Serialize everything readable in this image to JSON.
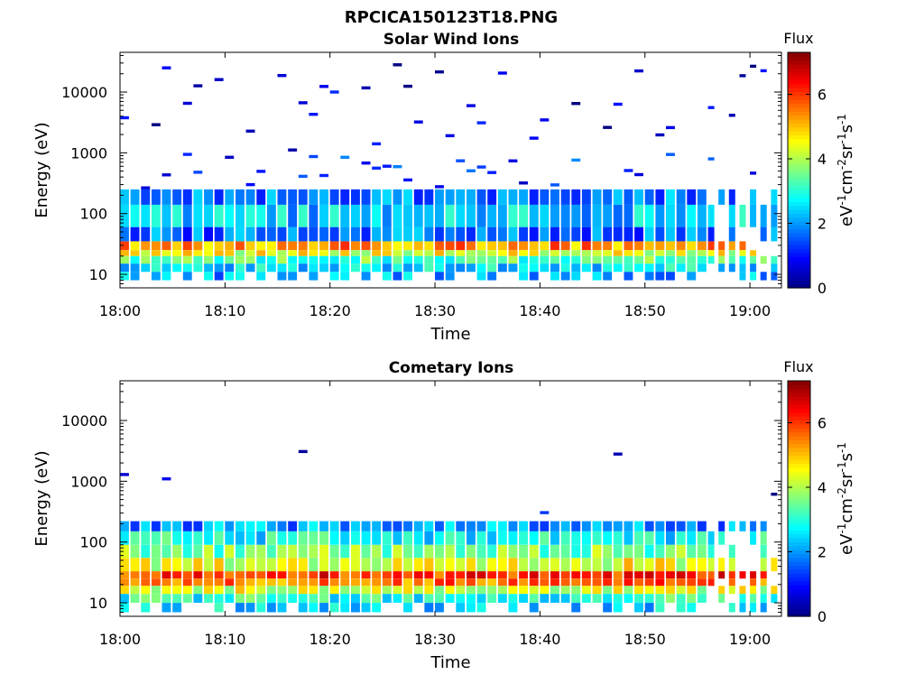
{
  "figure_title": "RPCICA150123T18.PNG",
  "colorbar": {
    "title": "Flux",
    "unit_parts": [
      "eV",
      "-1",
      "cm",
      "-2",
      "sr",
      "-1",
      "s",
      "-1"
    ],
    "ticks": [
      "0",
      "2",
      "4",
      "6"
    ],
    "range": [
      0,
      7.3
    ],
    "colormap": "jet"
  },
  "chart_data": [
    {
      "type": "heatmap",
      "title": "Solar Wind Ions",
      "xlabel": "Time",
      "ylabel": "Energy (eV)",
      "x_tick_labels": [
        "18:00",
        "18:10",
        "18:20",
        "18:30",
        "18:40",
        "18:50",
        "19:00"
      ],
      "x_range_minutes": [
        0,
        63
      ],
      "y_tick_labels": [
        "10",
        "100",
        "1000",
        "10000"
      ],
      "y_scale": "log",
      "y_range": [
        6,
        45000
      ],
      "time_step_minutes": 1.0,
      "bands": [
        {
          "e_min": 25,
          "e_max": 35,
          "flux": 5.3
        },
        {
          "e_min": 20,
          "e_max": 25,
          "flux": 4.4
        },
        {
          "e_min": 15,
          "e_max": 20,
          "flux": 3.3
        },
        {
          "e_min": 11,
          "e_max": 15,
          "flux": 2.6
        },
        {
          "e_min": 8,
          "e_max": 11,
          "flux": 2.1
        },
        {
          "e_min": 35,
          "e_max": 60,
          "flux": 1.7
        },
        {
          "e_min": 60,
          "e_max": 140,
          "flux": 2.4
        },
        {
          "e_min": 140,
          "e_max": 250,
          "flux": 1.9
        },
        {
          "e_min": 250,
          "e_max": 900,
          "flux": 1.2
        },
        {
          "e_min": 900,
          "e_max": 40000,
          "flux": 0.5
        }
      ]
    },
    {
      "type": "heatmap",
      "title": "Cometary Ions",
      "xlabel": "Time",
      "ylabel": "Energy (eV)",
      "x_tick_labels": [
        "18:00",
        "18:10",
        "18:20",
        "18:30",
        "18:40",
        "18:50",
        "19:00"
      ],
      "x_range_minutes": [
        0,
        63
      ],
      "y_tick_labels": [
        "10",
        "100",
        "1000",
        "10000"
      ],
      "y_scale": "log",
      "y_range": [
        6,
        45000
      ],
      "time_step_minutes": 1.0,
      "bands": [
        {
          "e_min": 25,
          "e_max": 33,
          "flux": 6.1
        },
        {
          "e_min": 19,
          "e_max": 25,
          "flux": 5.6
        },
        {
          "e_min": 14,
          "e_max": 19,
          "flux": 4.3
        },
        {
          "e_min": 10,
          "e_max": 14,
          "flux": 3.0
        },
        {
          "e_min": 7,
          "e_max": 10,
          "flux": 2.5
        },
        {
          "e_min": 33,
          "e_max": 55,
          "flux": 4.4
        },
        {
          "e_min": 55,
          "e_max": 90,
          "flux": 3.6
        },
        {
          "e_min": 90,
          "e_max": 150,
          "flux": 2.8
        },
        {
          "e_min": 150,
          "e_max": 220,
          "flux": 2.0
        },
        {
          "e_min": 220,
          "e_max": 3000,
          "flux": 0.6
        }
      ]
    }
  ]
}
